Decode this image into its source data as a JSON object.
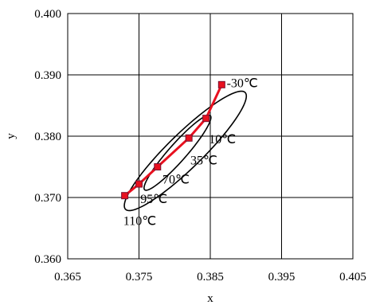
{
  "chart_data": {
    "type": "scatter",
    "title": "",
    "xlabel": "x",
    "ylabel": "y",
    "xlim": [
      0.365,
      0.405
    ],
    "ylim": [
      0.36,
      0.4
    ],
    "x_ticks": [
      "0.365",
      "0.375",
      "0.385",
      "0.395",
      "0.405"
    ],
    "y_ticks": [
      "0.360",
      "0.370",
      "0.380",
      "0.390",
      "0.400"
    ],
    "grid": "vertical and horizontal",
    "legend": "none",
    "series": [
      {
        "color": "#e8101f",
        "marker_color": "#e8101f",
        "points": [
          {
            "x": 0.373,
            "y": 0.3703
          },
          {
            "x": 0.375,
            "y": 0.3722
          },
          {
            "x": 0.3776,
            "y": 0.375
          },
          {
            "x": 0.382,
            "y": 0.3797
          },
          {
            "x": 0.3844,
            "y": 0.3829
          },
          {
            "x": 0.3866,
            "y": 0.3884
          }
        ]
      }
    ],
    "annotations": [
      {
        "text": "-30℃",
        "x": 0.3873,
        "y": 0.388
      },
      {
        "text": "10℃",
        "x": 0.3848,
        "y": 0.3788
      },
      {
        "text": "35℃",
        "x": 0.3822,
        "y": 0.3754
      },
      {
        "text": "70℃",
        "x": 0.3783,
        "y": 0.3723
      },
      {
        "text": "95℃",
        "x": 0.3752,
        "y": 0.3691
      },
      {
        "text": "110℃",
        "x": 0.3728,
        "y": 0.3655
      }
    ],
    "ellipses": [
      {
        "center": [
          0.3815,
          0.3776
        ],
        "semi_axes": [
          0.0127,
          0.0026
        ],
        "angle_deg": 49,
        "color": "#000000"
      },
      {
        "center": [
          0.3804,
          0.3773
        ],
        "semi_axes": [
          0.0076,
          0.0013
        ],
        "angle_deg": 53,
        "color": "#000000"
      }
    ]
  }
}
